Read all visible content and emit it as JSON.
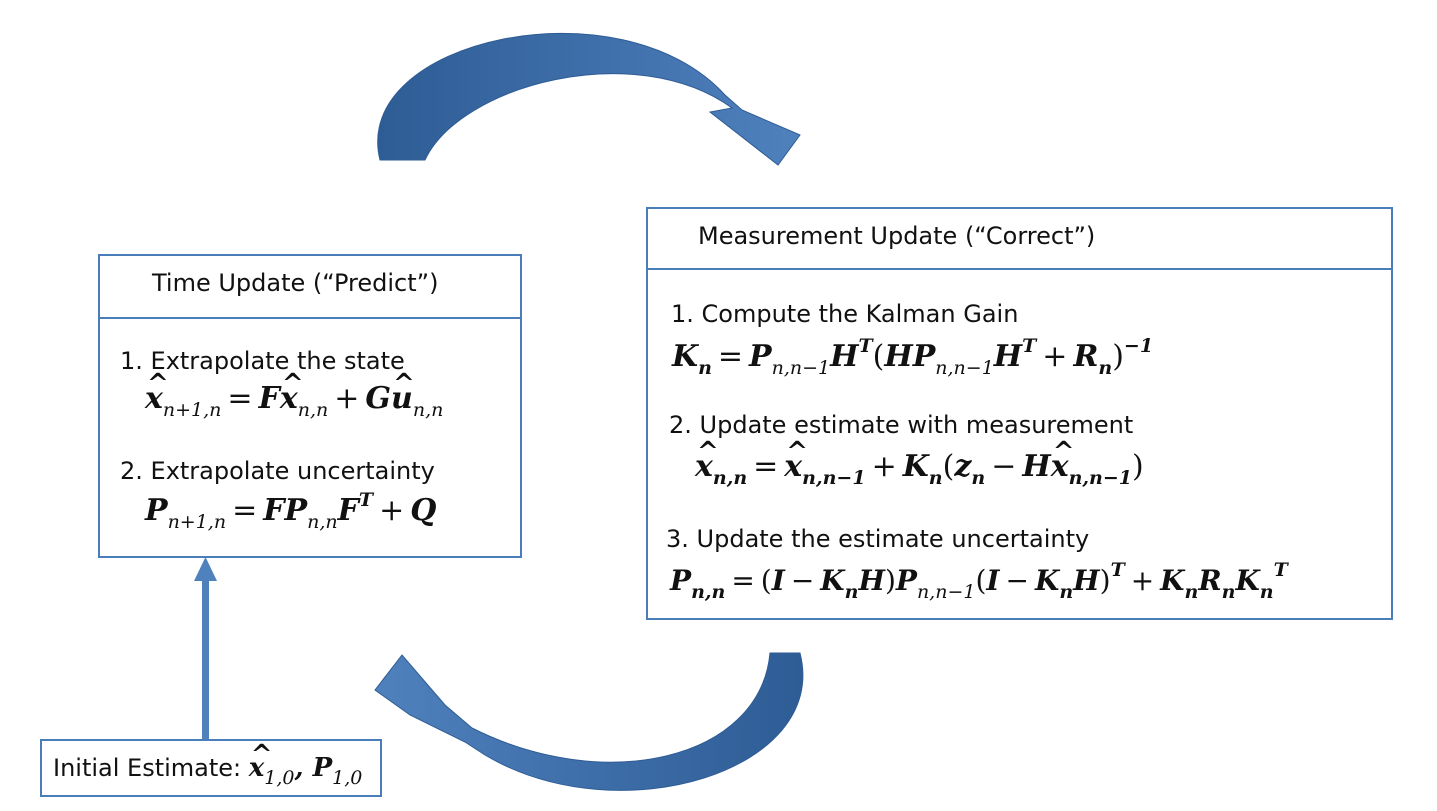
{
  "time_update": {
    "title": "Time Update (“Predict”)",
    "step1": "1. Extrapolate the state",
    "step2": "2. Extrapolate uncertainty"
  },
  "measurement_update": {
    "title": "Measurement Update (“Correct”)",
    "step1": "1. Compute the Kalman Gain",
    "step2": "2. Update estimate with measurement",
    "step3": "3. Update the estimate uncertainty"
  },
  "initial": {
    "label": "Initial Estimate:",
    "formula": "x̂₁,₀, P₁,₀"
  },
  "equations": {
    "state_extrapolation": "x̂ n+1,n = F x̂ n,n + G û n,n",
    "covariance_extrapolation": "P n+1,n = F P n,n F^T + Q",
    "kalman_gain": "K n = P n,n−1 H^T (H P n,n−1 H^T + R n)^−1",
    "state_update": "x̂ n,n = x̂ n,n−1 + K n (z n − H x̂ n,n−1)",
    "covariance_update": "P n,n = (I − K n H) P n,n−1 (I − K n H)^T + K n R n K n^T"
  },
  "colors": {
    "box_border": "#4A7EBB",
    "arrow_fill": "#4F81BD",
    "arrow_dark": "#2E5C95"
  }
}
